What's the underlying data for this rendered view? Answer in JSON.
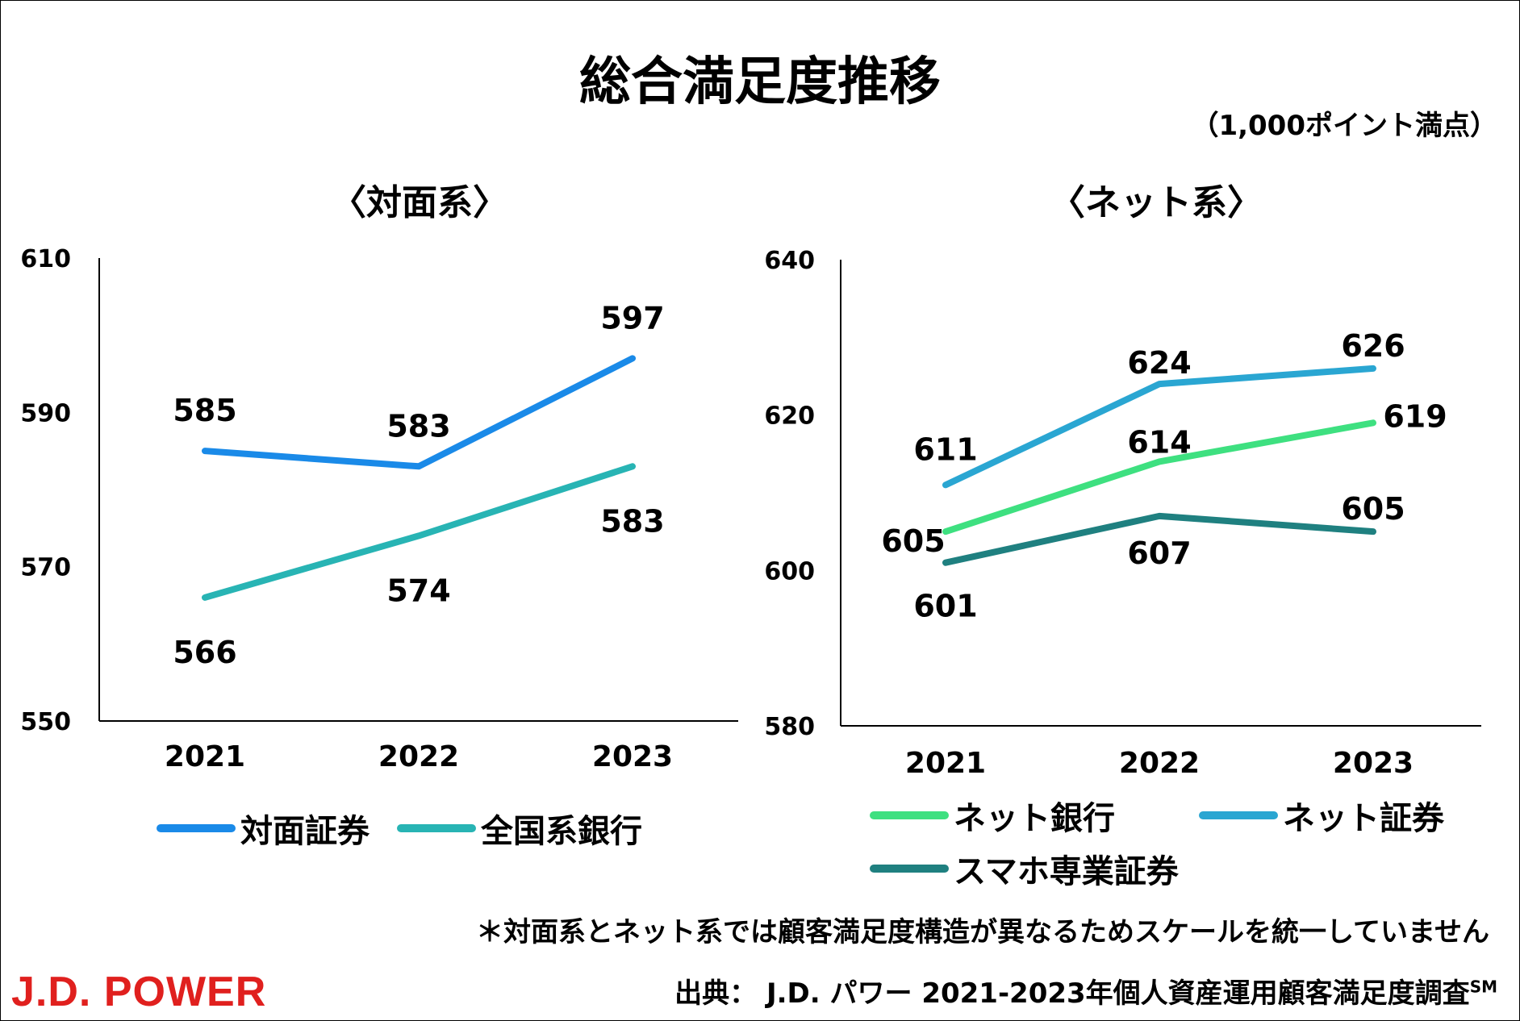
{
  "title": "総合満足度推移",
  "unit_note": "（1,000ポイント満点）",
  "footnote": "＊対面系とネット系では顧客満足度構造が異なるためスケールを統一していません",
  "source_prefix": "出典：",
  "source_text": "J.D. パワー 2021-2023年個人資産運用顧客満足度調査",
  "source_sup": "SM",
  "logo_text": "J.D. POWER",
  "chart_data": [
    {
      "type": "line",
      "title": "〈対面系〉",
      "categories": [
        "2021",
        "2022",
        "2023"
      ],
      "ylim": [
        550,
        610
      ],
      "yticks": [
        "550",
        "570",
        "590",
        "610"
      ],
      "series": [
        {
          "name": "対面証券",
          "values": [
            585,
            583,
            597
          ],
          "color": "#1a8ae8"
        },
        {
          "name": "全国系銀行",
          "values": [
            566,
            574,
            583
          ],
          "color": "#28b4b4"
        }
      ]
    },
    {
      "type": "line",
      "title": "〈ネット系〉",
      "categories": [
        "2021",
        "2022",
        "2023"
      ],
      "ylim": [
        580,
        640
      ],
      "yticks": [
        "580",
        "600",
        "620",
        "640"
      ],
      "series": [
        {
          "name": "ネット銀行",
          "values": [
            605,
            614,
            619
          ],
          "color": "#3ee080"
        },
        {
          "name": "ネット証券",
          "values": [
            611,
            624,
            626
          ],
          "color": "#2aa6d2"
        },
        {
          "name": "スマホ専業証券",
          "values": [
            601,
            607,
            605
          ],
          "color": "#1f8080"
        }
      ]
    }
  ]
}
